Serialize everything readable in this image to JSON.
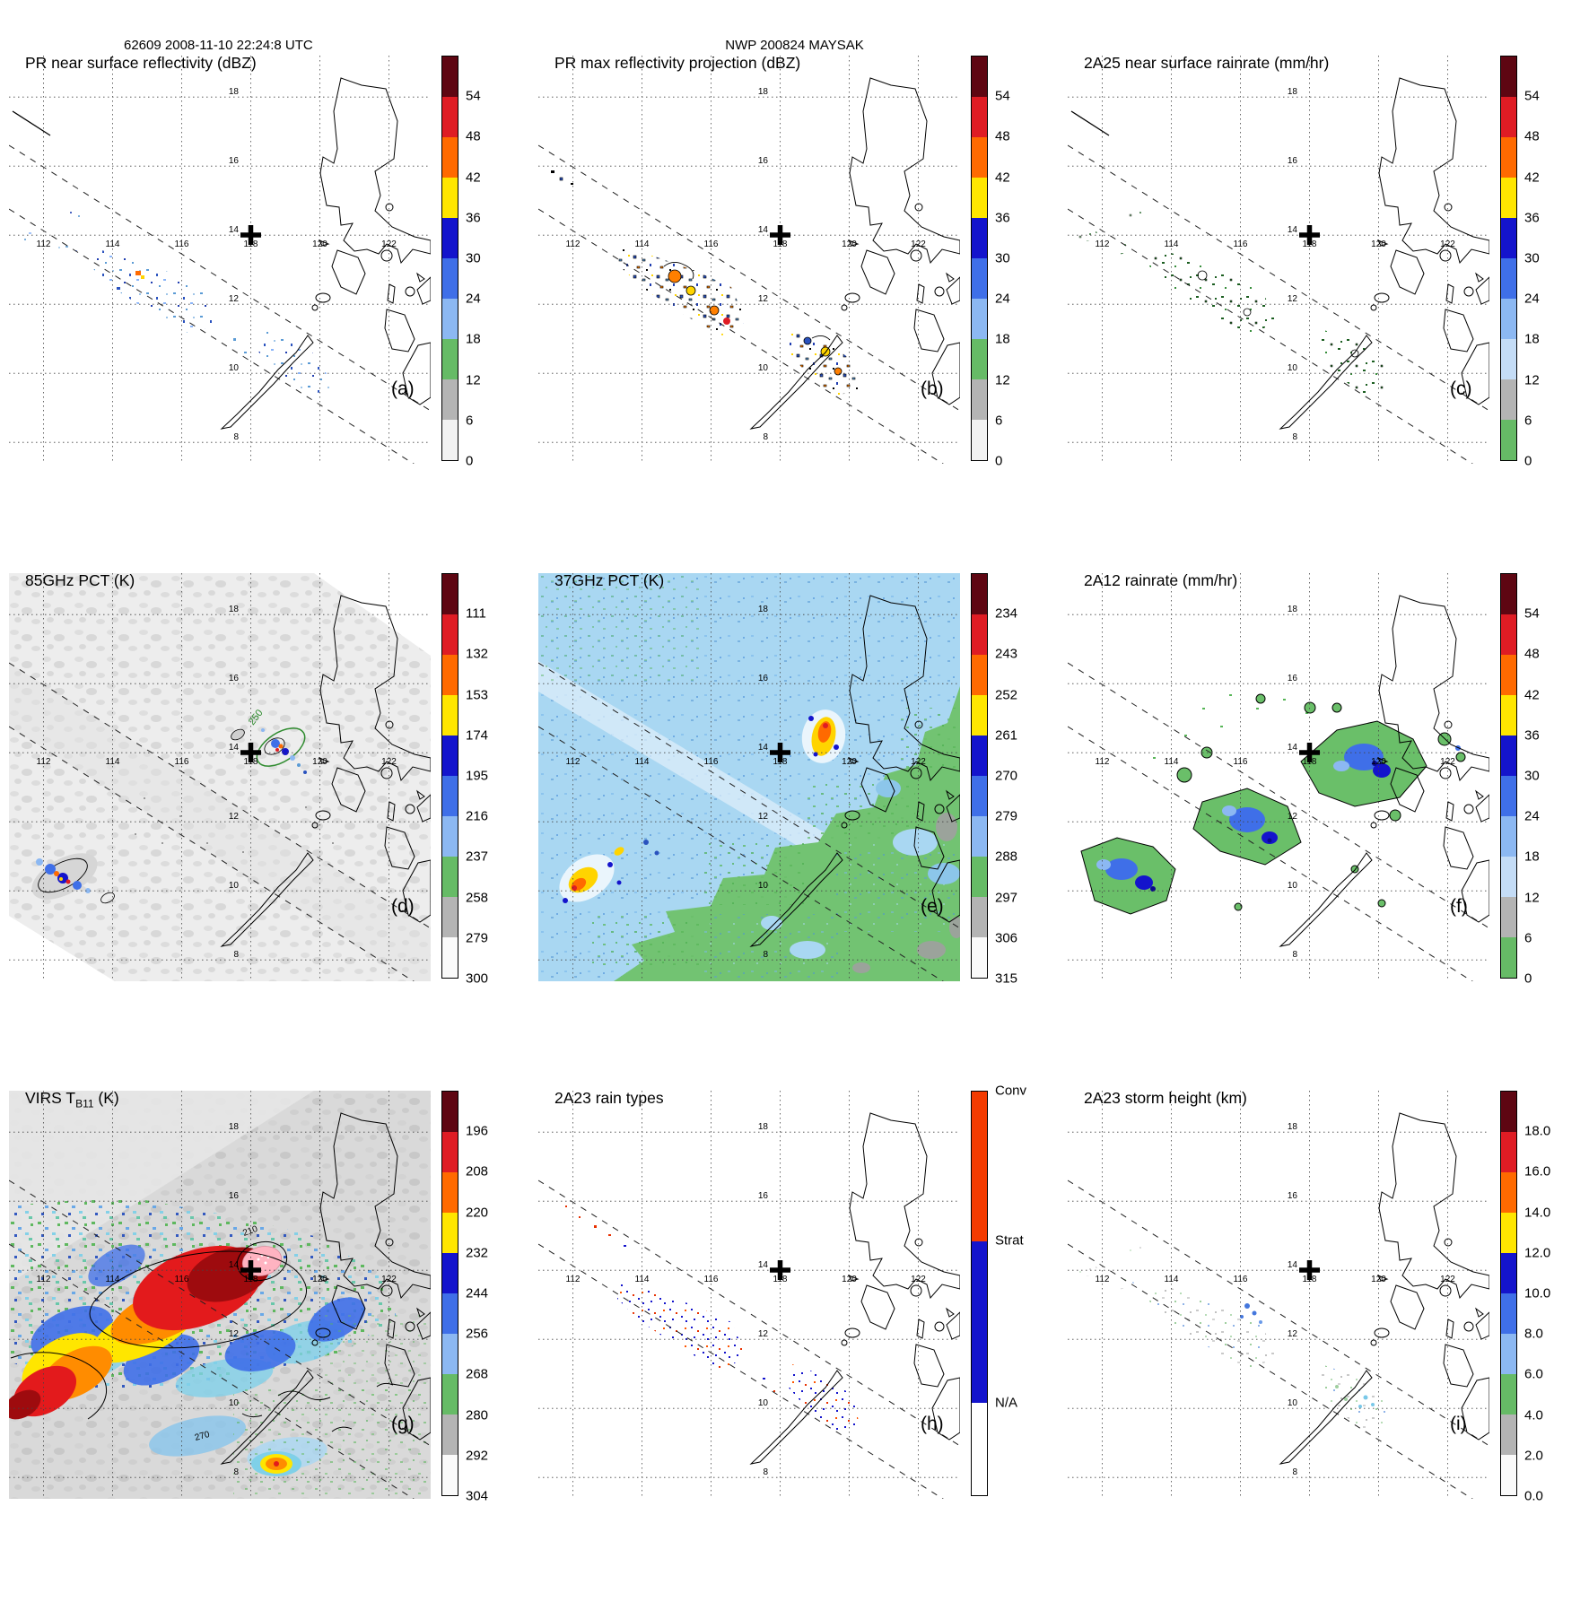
{
  "header": {
    "left": "62609 2008-11-10 22:24:8 UTC",
    "center": "NWP 200824 MAYSAK"
  },
  "map": {
    "lon_labels": [
      "112",
      "114",
      "116",
      "118",
      "120",
      "122"
    ],
    "lat_labels": [
      "18",
      "16",
      "14",
      "12",
      "10",
      "8"
    ]
  },
  "panels": [
    {
      "id": "a",
      "title": "PR near surface reflectivity (dBZ)",
      "label": "(a)",
      "colorbar": {
        "ticks": [
          "54",
          "48",
          "42",
          "36",
          "30",
          "24",
          "18",
          "12",
          "6",
          "0"
        ],
        "colors": [
          "#5e0612",
          "#df1c24",
          "#ff6a00",
          "#ffe600",
          "#1414cc",
          "#3f6fe8",
          "#8cb8f2",
          "#66bb66",
          "#b4b4b4",
          "#f2f2f2"
        ]
      }
    },
    {
      "id": "b",
      "title": "PR max reflectivity projection (dBZ)",
      "label": "(b)",
      "colorbar": {
        "ticks": [
          "54",
          "48",
          "42",
          "36",
          "30",
          "24",
          "18",
          "12",
          "6",
          "0"
        ],
        "colors": [
          "#5e0612",
          "#df1c24",
          "#ff6a00",
          "#ffe600",
          "#1414cc",
          "#3f6fe8",
          "#8cb8f2",
          "#66bb66",
          "#b4b4b4",
          "#f2f2f2"
        ]
      }
    },
    {
      "id": "c",
      "title": "2A25 near surface rainrate (mm/hr)",
      "label": "(c)",
      "colorbar": {
        "ticks": [
          "54",
          "48",
          "42",
          "36",
          "30",
          "24",
          "18",
          "12",
          "6",
          "0"
        ],
        "colors": [
          "#5e0612",
          "#df1c24",
          "#ff6a00",
          "#ffe600",
          "#1414cc",
          "#3f6fe8",
          "#8cb8f2",
          "#c4dcf6",
          "#b4b4b4",
          "#66bb66"
        ]
      }
    },
    {
      "id": "d",
      "title": "85GHz PCT (K)",
      "label": "(d)",
      "contour_label": "250",
      "colorbar": {
        "ticks": [
          "111",
          "132",
          "153",
          "174",
          "195",
          "216",
          "237",
          "258",
          "279",
          "300"
        ],
        "colors": [
          "#5e0612",
          "#df1c24",
          "#ff6a00",
          "#ffe600",
          "#1414cc",
          "#3f6fe8",
          "#8cb8f2",
          "#66bb66",
          "#b4b4b4",
          "#fafafa"
        ]
      }
    },
    {
      "id": "e",
      "title": "37GHz PCT (K)",
      "label": "(e)",
      "colorbar": {
        "ticks": [
          "234",
          "243",
          "252",
          "261",
          "270",
          "279",
          "288",
          "297",
          "306",
          "315"
        ],
        "colors": [
          "#5e0612",
          "#df1c24",
          "#ff6a00",
          "#ffe600",
          "#1414cc",
          "#3f6fe8",
          "#8cb8f2",
          "#66bb66",
          "#b4b4b4",
          "#fafafa"
        ]
      }
    },
    {
      "id": "f",
      "title": "2A12 rainrate (mm/hr)",
      "label": "(f)",
      "colorbar": {
        "ticks": [
          "54",
          "48",
          "42",
          "36",
          "30",
          "24",
          "18",
          "12",
          "6",
          "0"
        ],
        "colors": [
          "#5e0612",
          "#df1c24",
          "#ff6a00",
          "#ffe600",
          "#1414cc",
          "#3f6fe8",
          "#8cb8f2",
          "#c4dcf6",
          "#b4b4b4",
          "#66bb66"
        ]
      }
    },
    {
      "id": "g",
      "title_prefix": "VIRS T",
      "title_sub": "B11",
      "title_suffix": " (K)",
      "label": "(g)",
      "contour_labels": [
        "210",
        "270"
      ],
      "colorbar": {
        "ticks": [
          "196",
          "208",
          "220",
          "232",
          "244",
          "256",
          "268",
          "280",
          "292",
          "304"
        ],
        "colors": [
          "#5e0612",
          "#df1c24",
          "#ff6a00",
          "#ffe600",
          "#1414cc",
          "#3f6fe8",
          "#8cb8f2",
          "#66bb66",
          "#b4b4b4",
          "#fafafa"
        ]
      }
    },
    {
      "id": "h",
      "title": "2A23 rain types",
      "label": "(h)",
      "colorbar": {
        "segments": [
          {
            "label": "Conv",
            "color": "#f43b00",
            "frac": 0.37
          },
          {
            "label": "Strat",
            "color": "#1414cc",
            "frac": 0.4
          },
          {
            "label": "N/A",
            "color": "#ffffff",
            "frac": 0.23
          }
        ]
      }
    },
    {
      "id": "i",
      "title": "2A23 storm height (km)",
      "label": "(i)",
      "colorbar": {
        "ticks": [
          "18.0",
          "16.0",
          "14.0",
          "12.0",
          "10.0",
          "8.0",
          "6.0",
          "4.0",
          "2.0",
          "0.0"
        ],
        "colors": [
          "#5e0612",
          "#df1c24",
          "#ff6a00",
          "#ffe600",
          "#1414cc",
          "#3f6fe8",
          "#8cb8f2",
          "#66bb66",
          "#b4b4b4",
          "#fafafa"
        ]
      }
    }
  ]
}
